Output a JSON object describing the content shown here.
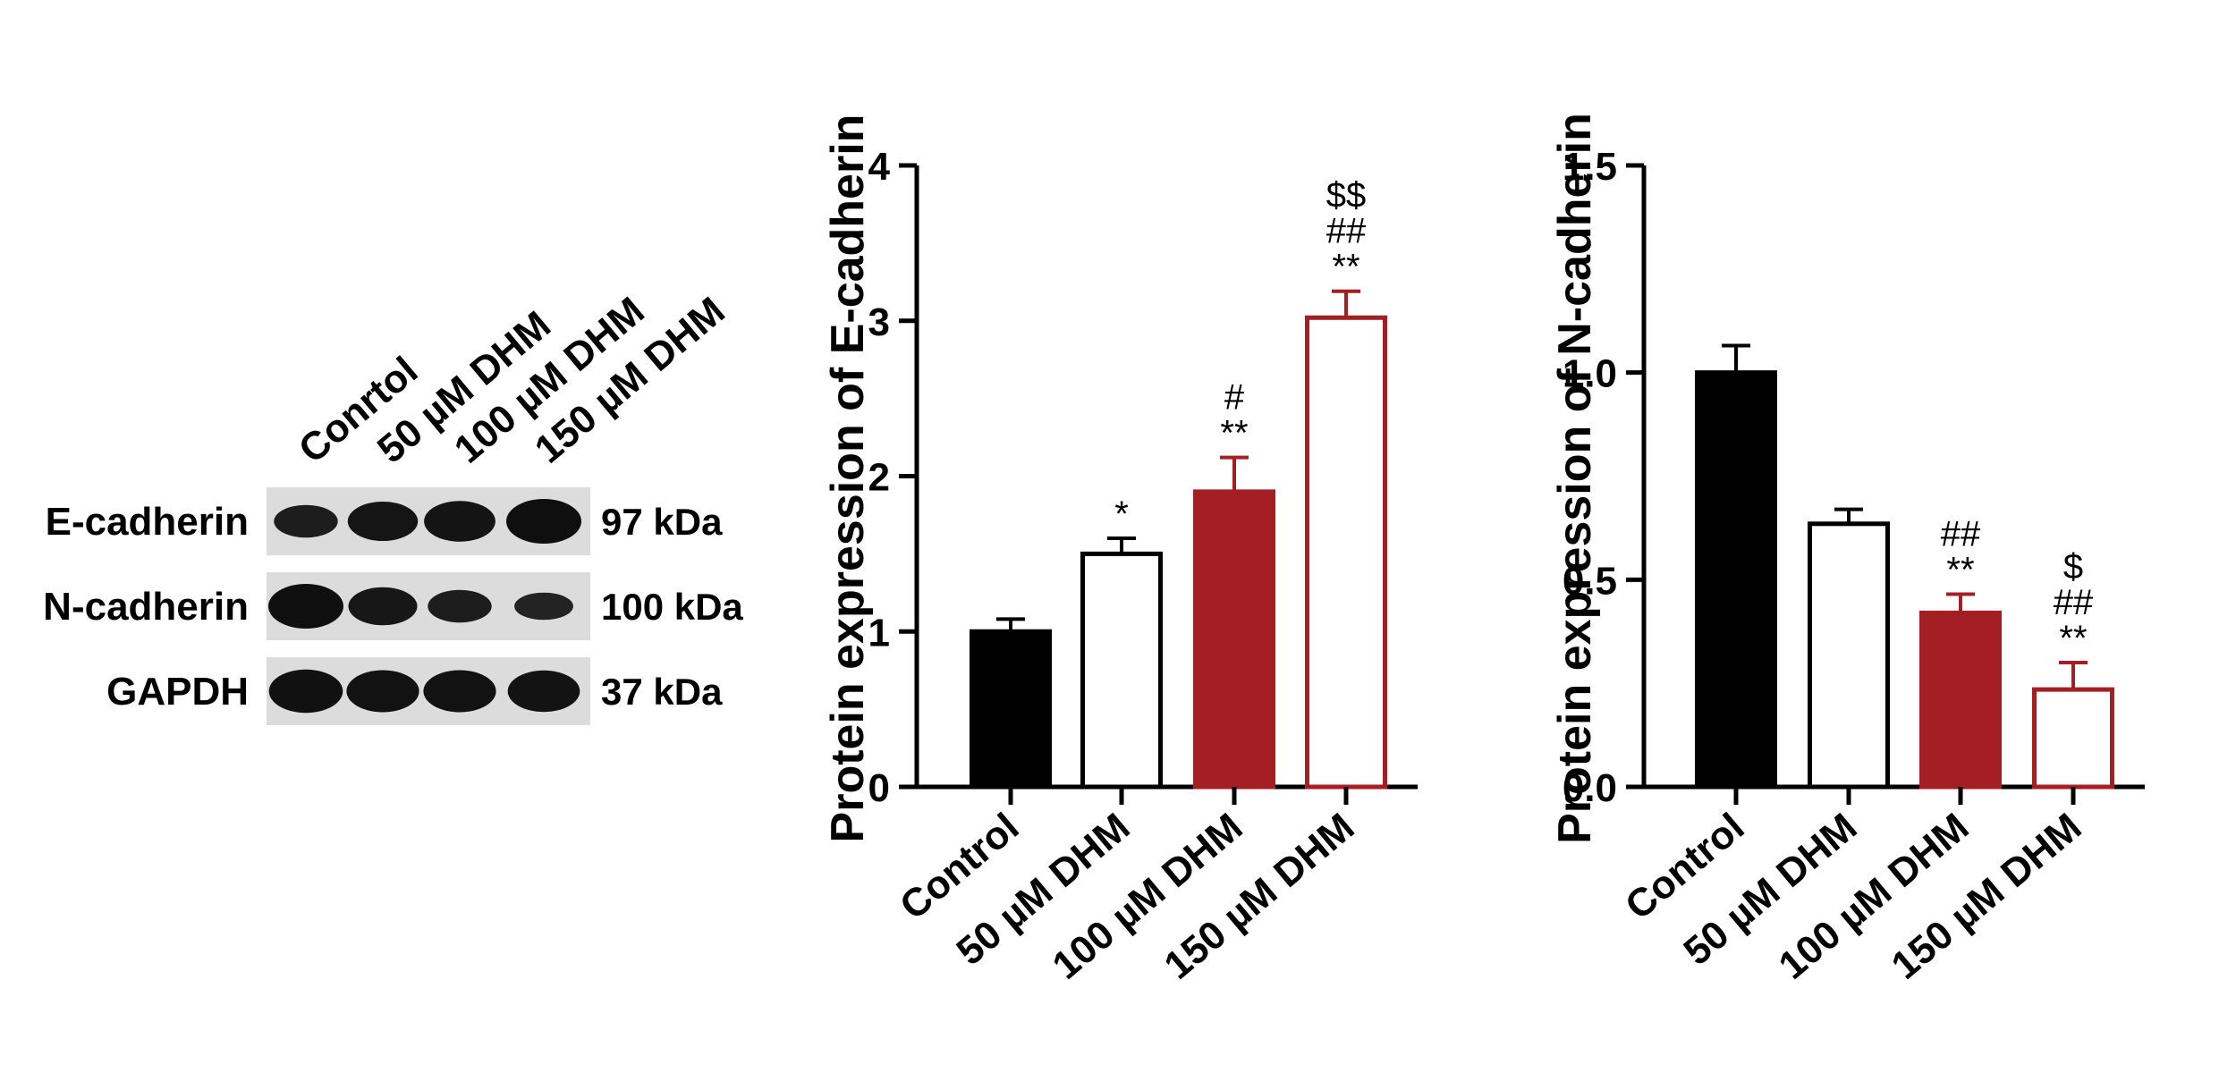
{
  "blot": {
    "lanes": [
      "Conrtol",
      "50 µM DHM",
      "100 µM DHM",
      "150 µM DHM"
    ],
    "rows": [
      {
        "protein": "E-cadherin",
        "size": "97 kDa",
        "intensity": [
          0.55,
          0.8,
          0.85,
          1.0
        ]
      },
      {
        "protein": "N-cadherin",
        "size": "100 kDa",
        "intensity": [
          1.0,
          0.75,
          0.55,
          0.35
        ]
      },
      {
        "protein": "GAPDH",
        "size": "37 kDa",
        "intensity": [
          0.95,
          0.9,
          0.9,
          0.88
        ]
      }
    ]
  },
  "chart_data": [
    {
      "type": "bar",
      "title": "",
      "xlabel": "",
      "ylabel": "Protein expression of E-cadherin",
      "ylim": [
        0,
        4
      ],
      "yticks": [
        "0",
        "1",
        "2",
        "3",
        "4"
      ],
      "categories": [
        "Control",
        "50 µM DHM",
        "100 µM DHM",
        "150 µM DHM"
      ],
      "values": [
        1.0,
        1.5,
        1.9,
        3.02
      ],
      "errors": [
        0.08,
        0.1,
        0.22,
        0.17
      ],
      "annotations": [
        [],
        [
          "*"
        ],
        [
          "#",
          "**"
        ],
        [
          "$$",
          "##",
          "**"
        ]
      ],
      "fill_colors": [
        "#000000",
        "#ffffff",
        "#a31f24",
        "#ffffff"
      ],
      "edge_colors": [
        "#000000",
        "#000000",
        "#a31f24",
        "#a31f24"
      ]
    },
    {
      "type": "bar",
      "title": "",
      "xlabel": "",
      "ylabel": "Protein expression of N-cadherin",
      "ylim": [
        0,
        1.5
      ],
      "yticks": [
        "0.0",
        "0.5",
        "1.0",
        "1.5"
      ],
      "categories": [
        "Control",
        "50 µM DHM",
        "100 µM DHM",
        "150 µM DHM"
      ],
      "values": [
        1.0,
        0.635,
        0.42,
        0.235
      ],
      "errors": [
        0.065,
        0.035,
        0.045,
        0.065
      ],
      "annotations": [
        [],
        [],
        [
          "##",
          "**"
        ],
        [
          "$",
          "##",
          "**"
        ]
      ],
      "fill_colors": [
        "#000000",
        "#ffffff",
        "#a31f24",
        "#ffffff"
      ],
      "edge_colors": [
        "#000000",
        "#000000",
        "#a31f24",
        "#a31f24"
      ]
    }
  ]
}
